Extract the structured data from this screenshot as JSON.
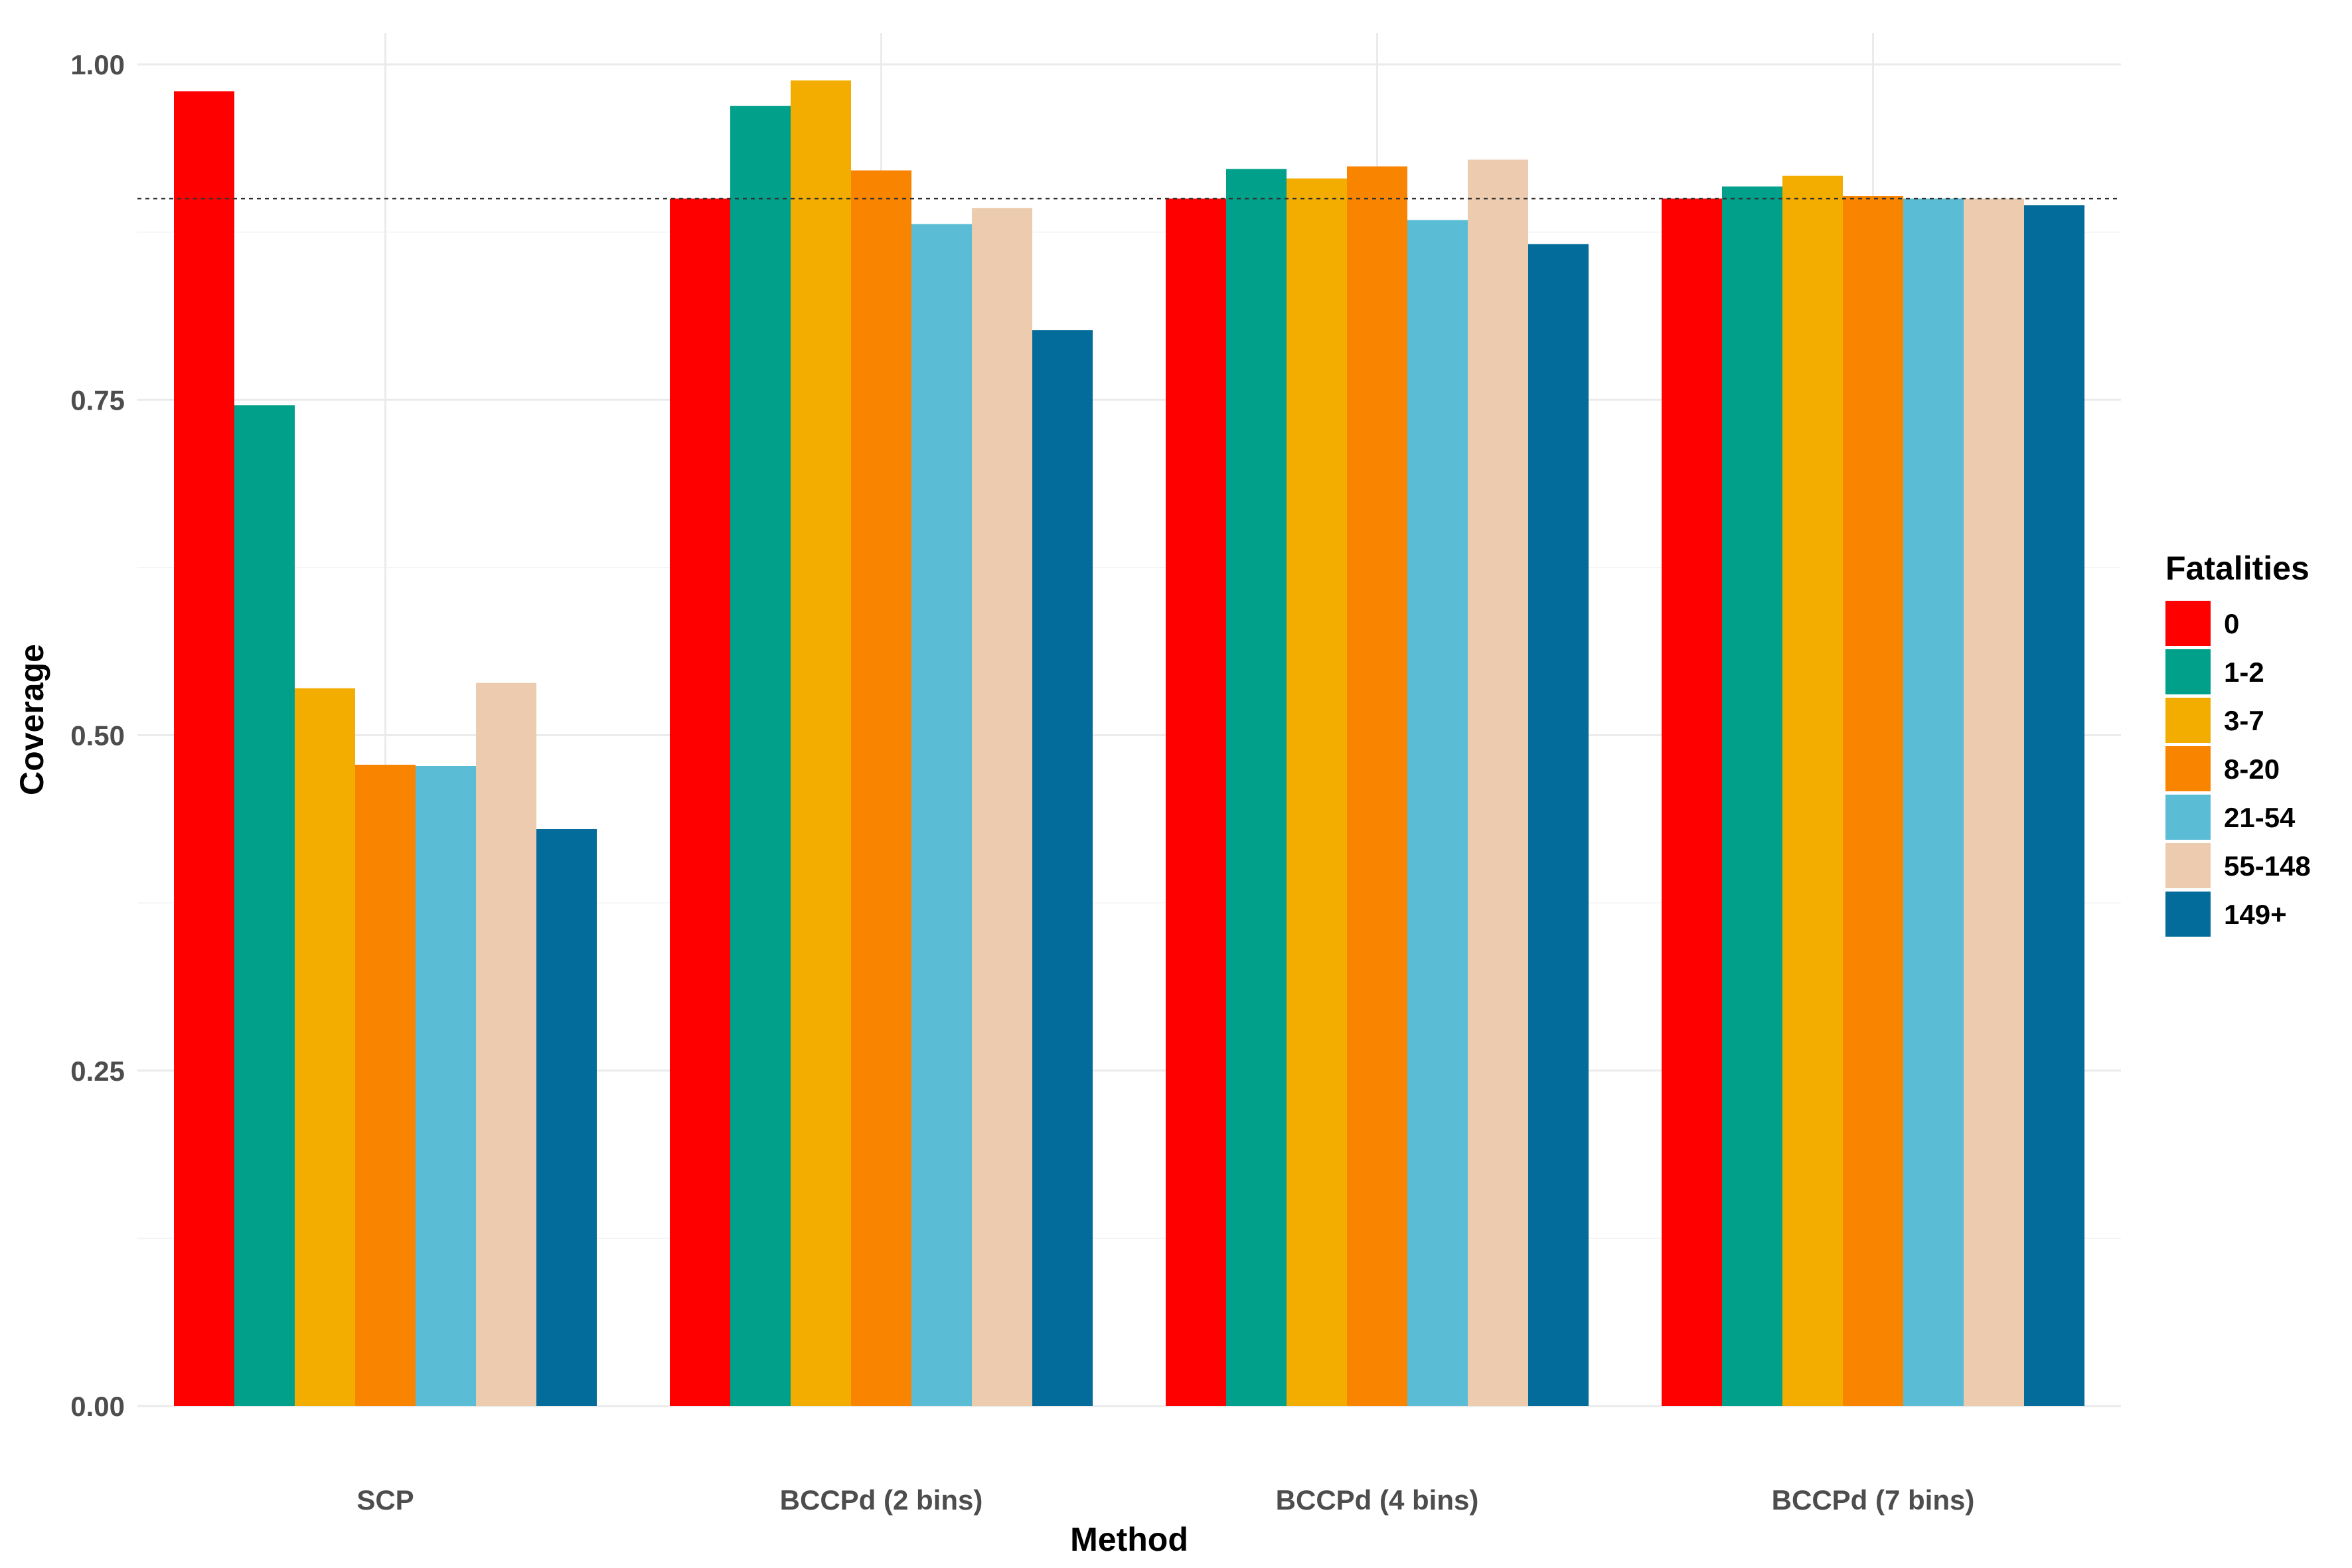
{
  "chart_data": {
    "type": "bar",
    "xlabel": "Method",
    "ylabel": "Coverage",
    "ylim": [
      0,
      1.0
    ],
    "yticks": [
      "0.00",
      "0.25",
      "0.50",
      "0.75",
      "1.00"
    ],
    "reference_line": 0.9,
    "grid": true,
    "legend": {
      "title": "Fatalities",
      "position": "right"
    },
    "categories": [
      "SCP",
      "BCCPd (2 bins)",
      "BCCPd (4 bins)",
      "BCCPd (7 bins)"
    ],
    "series": [
      {
        "name": "0",
        "color": "#FF0000",
        "values": [
          0.98,
          0.9,
          0.9,
          0.9
        ]
      },
      {
        "name": "1-2",
        "color": "#00A08A",
        "values": [
          0.746,
          0.969,
          0.922,
          0.909
        ]
      },
      {
        "name": "3-7",
        "color": "#F2AD00",
        "values": [
          0.535,
          0.988,
          0.915,
          0.917
        ]
      },
      {
        "name": "8-20",
        "color": "#F98400",
        "values": [
          0.478,
          0.921,
          0.924,
          0.902
        ]
      },
      {
        "name": "21-54",
        "color": "#5BBCD6",
        "values": [
          0.477,
          0.881,
          0.884,
          0.9
        ]
      },
      {
        "name": "55-148",
        "color": "#ECCBAE",
        "values": [
          0.539,
          0.893,
          0.929,
          0.9
        ]
      },
      {
        "name": "149+",
        "color": "#046C9A",
        "values": [
          0.43,
          0.802,
          0.866,
          0.895
        ]
      }
    ]
  }
}
